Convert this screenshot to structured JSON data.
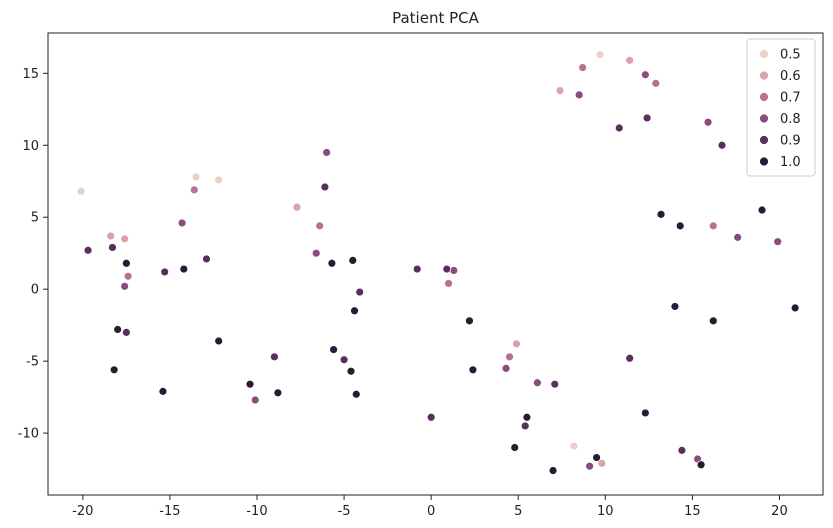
{
  "chart_data": {
    "type": "scatter",
    "title": "Patient PCA",
    "xlabel": "",
    "ylabel": "",
    "xlim": [
      -22,
      22.5
    ],
    "ylim": [
      -14.3,
      17.8
    ],
    "xticks": [
      -20,
      -15,
      -10,
      -5,
      0,
      5,
      10,
      15,
      20
    ],
    "yticks": [
      -10,
      -5,
      0,
      5,
      10,
      15
    ],
    "grid": false,
    "legend": {
      "placement": "top-right",
      "entries": [
        {
          "label": "0.5",
          "color": "#ebd0c6"
        },
        {
          "label": "0.6",
          "color": "#d9a3a8"
        },
        {
          "label": "0.7",
          "color": "#b9718f"
        },
        {
          "label": "0.8",
          "color": "#8b4b7f"
        },
        {
          "label": "0.9",
          "color": "#5a2f5d"
        },
        {
          "label": "1.0",
          "color": "#2a1b34"
        }
      ]
    },
    "series": [
      {
        "name": "0.5",
        "color": "#ebd0c6",
        "points": [
          {
            "x": -20.1,
            "y": 6.8
          },
          {
            "x": -13.5,
            "y": 7.8
          },
          {
            "x": -12.2,
            "y": 7.6
          },
          {
            "x": 9.7,
            "y": 16.3
          },
          {
            "x": 8.2,
            "y": -10.9
          }
        ]
      },
      {
        "name": "0.6",
        "color": "#d9a3a8",
        "points": [
          {
            "x": -18.4,
            "y": 3.7
          },
          {
            "x": -17.6,
            "y": 3.5
          },
          {
            "x": -7.7,
            "y": 5.7
          },
          {
            "x": 7.4,
            "y": 13.8
          },
          {
            "x": 11.4,
            "y": 15.9
          },
          {
            "x": 4.9,
            "y": -3.8
          },
          {
            "x": 9.8,
            "y": -12.1
          }
        ]
      },
      {
        "name": "0.7",
        "color": "#b9718f",
        "points": [
          {
            "x": -13.6,
            "y": 6.9
          },
          {
            "x": -6.4,
            "y": 4.4
          },
          {
            "x": -17.4,
            "y": 0.9
          },
          {
            "x": 8.7,
            "y": 15.4
          },
          {
            "x": 12.9,
            "y": 14.3
          },
          {
            "x": 1.0,
            "y": 0.4
          },
          {
            "x": 4.5,
            "y": -4.7
          },
          {
            "x": 16.2,
            "y": 4.4
          }
        ]
      },
      {
        "name": "0.8",
        "color": "#8b4b7f",
        "points": [
          {
            "x": -14.3,
            "y": 4.6
          },
          {
            "x": -6.6,
            "y": 2.5
          },
          {
            "x": -17.6,
            "y": 0.2
          },
          {
            "x": -6.0,
            "y": 9.5
          },
          {
            "x": -10.1,
            "y": -7.7
          },
          {
            "x": 8.5,
            "y": 13.5
          },
          {
            "x": 12.3,
            "y": 14.9
          },
          {
            "x": 15.9,
            "y": 11.6
          },
          {
            "x": 17.6,
            "y": 3.6
          },
          {
            "x": 19.9,
            "y": 3.3
          },
          {
            "x": 6.1,
            "y": -6.5
          },
          {
            "x": 4.3,
            "y": -5.5
          },
          {
            "x": 9.1,
            "y": -12.3
          },
          {
            "x": 15.3,
            "y": -11.8
          },
          {
            "x": 1.3,
            "y": 1.3
          }
        ]
      },
      {
        "name": "0.9",
        "color": "#5a2f5d",
        "points": [
          {
            "x": -19.7,
            "y": 2.7
          },
          {
            "x": -18.3,
            "y": 2.9
          },
          {
            "x": -17.5,
            "y": -3.0
          },
          {
            "x": -15.3,
            "y": 1.2
          },
          {
            "x": -12.9,
            "y": 2.1
          },
          {
            "x": -6.1,
            "y": 7.1
          },
          {
            "x": -9.0,
            "y": -4.7
          },
          {
            "x": -4.1,
            "y": -0.2
          },
          {
            "x": -5.0,
            "y": -4.9
          },
          {
            "x": -0.8,
            "y": 1.4
          },
          {
            "x": 0.9,
            "y": 1.4
          },
          {
            "x": 0.0,
            "y": -8.9
          },
          {
            "x": 5.4,
            "y": -9.5
          },
          {
            "x": 7.1,
            "y": -6.6
          },
          {
            "x": 10.8,
            "y": 11.2
          },
          {
            "x": 12.4,
            "y": 11.9
          },
          {
            "x": 16.7,
            "y": 10.0
          },
          {
            "x": 11.4,
            "y": -4.8
          },
          {
            "x": 14.4,
            "y": -11.2
          }
        ]
      },
      {
        "name": "1.0",
        "color": "#2a1b34",
        "points": [
          {
            "x": -17.5,
            "y": 1.8
          },
          {
            "x": -18.0,
            "y": -2.8
          },
          {
            "x": -18.2,
            "y": -5.6
          },
          {
            "x": -15.4,
            "y": -7.1
          },
          {
            "x": -14.2,
            "y": 1.4
          },
          {
            "x": -12.2,
            "y": -3.6
          },
          {
            "x": -10.4,
            "y": -6.6
          },
          {
            "x": -8.8,
            "y": -7.2
          },
          {
            "x": -5.7,
            "y": 1.8
          },
          {
            "x": -4.5,
            "y": 2.0
          },
          {
            "x": -4.4,
            "y": -1.5
          },
          {
            "x": -5.6,
            "y": -4.2
          },
          {
            "x": -4.6,
            "y": -5.7
          },
          {
            "x": -4.3,
            "y": -7.3
          },
          {
            "x": 2.2,
            "y": -2.2
          },
          {
            "x": 2.4,
            "y": -5.6
          },
          {
            "x": 5.5,
            "y": -8.9
          },
          {
            "x": 4.8,
            "y": -11.0
          },
          {
            "x": 7.0,
            "y": -12.6
          },
          {
            "x": 9.5,
            "y": -11.7
          },
          {
            "x": 12.3,
            "y": -8.6
          },
          {
            "x": 13.2,
            "y": 5.2
          },
          {
            "x": 14.3,
            "y": 4.4
          },
          {
            "x": 14.0,
            "y": -1.2
          },
          {
            "x": 16.2,
            "y": -2.2
          },
          {
            "x": 15.5,
            "y": -12.2
          },
          {
            "x": 19.0,
            "y": 5.5
          },
          {
            "x": 20.9,
            "y": -1.3
          }
        ]
      }
    ]
  }
}
